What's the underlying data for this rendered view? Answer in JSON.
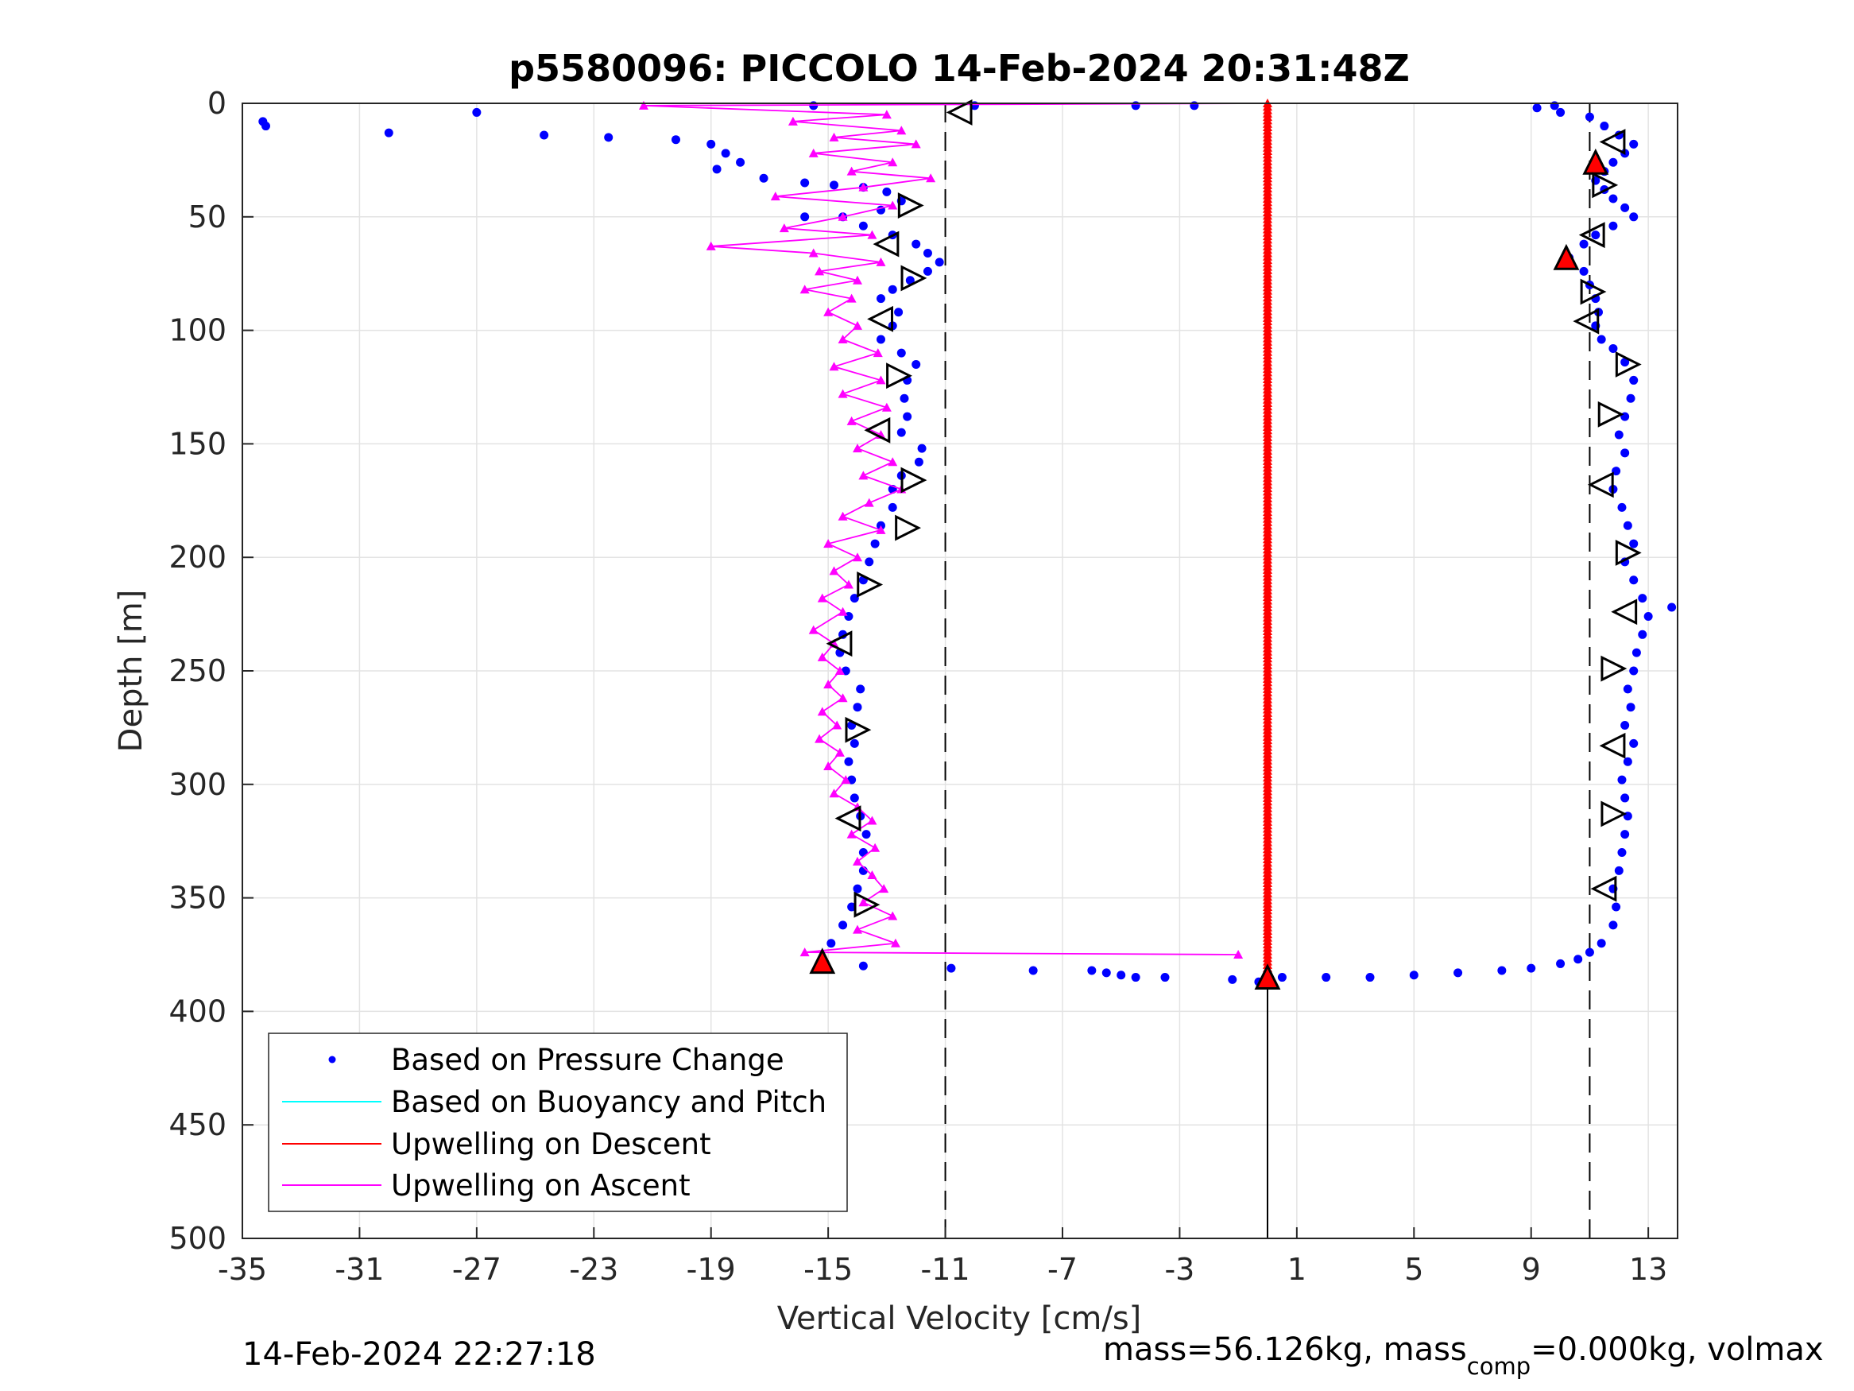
{
  "chart_data": {
    "type": "scatter",
    "title": "p5580096: PICCOLO 14-Feb-2024 20:31:48Z",
    "xlabel": "Vertical Velocity [cm/s]",
    "ylabel": "Depth [m]",
    "xlim": [
      -35,
      14
    ],
    "ylim": [
      0,
      500
    ],
    "y_reversed": true,
    "grid": true,
    "legend_position": "bottom-left",
    "x_ticks": [
      -35,
      -31,
      -27,
      -23,
      -19,
      -15,
      -11,
      -7,
      -3,
      1,
      5,
      9,
      13
    ],
    "y_ticks": [
      0,
      50,
      100,
      150,
      200,
      250,
      300,
      350,
      400,
      450,
      500
    ],
    "reference_lines": {
      "dashed_x": [
        -11,
        11
      ],
      "solid_x_at_upwelling": 0,
      "solid_line_start_depth": 385
    },
    "legend": [
      {
        "name": "Based on Pressure Change",
        "color": "#0000ff",
        "style": "marker"
      },
      {
        "name": "Based on Buoyancy and Pitch",
        "color": "#00ffff",
        "style": "line"
      },
      {
        "name": "Upwelling on Descent",
        "color": "#ff0000",
        "style": "line"
      },
      {
        "name": "Upwelling on Ascent",
        "color": "#ff00ff",
        "style": "line"
      }
    ],
    "series": [
      {
        "name": "Based on Pressure Change",
        "color": "#0000ff",
        "descent_points": [
          [
            -34.3,
            8
          ],
          [
            -34.2,
            10
          ],
          [
            -30,
            13
          ],
          [
            -27,
            4
          ],
          [
            -24.7,
            14
          ],
          [
            -22.5,
            15
          ],
          [
            -20.2,
            16
          ],
          [
            -19,
            18
          ],
          [
            -18.5,
            22
          ],
          [
            -18,
            26
          ],
          [
            -18.8,
            29
          ],
          [
            -17.2,
            33
          ],
          [
            -15.8,
            35
          ],
          [
            -14.8,
            36
          ],
          [
            -13.8,
            37
          ],
          [
            -13,
            39
          ],
          [
            -12.5,
            43
          ],
          [
            -13.2,
            47
          ],
          [
            -14.5,
            50
          ],
          [
            -15.8,
            50
          ],
          [
            -13.8,
            54
          ],
          [
            -12.8,
            58
          ],
          [
            -12,
            62
          ],
          [
            -11.6,
            66
          ],
          [
            -11.2,
            70
          ],
          [
            -11.6,
            74
          ],
          [
            -12.2,
            78
          ],
          [
            -12.8,
            82
          ],
          [
            -13.2,
            86
          ],
          [
            -12.6,
            92
          ],
          [
            -12.8,
            98
          ],
          [
            -13.2,
            104
          ],
          [
            -12.5,
            110
          ],
          [
            -12,
            115
          ],
          [
            -12.3,
            122
          ],
          [
            -12.4,
            130
          ],
          [
            -12.3,
            138
          ],
          [
            -12.5,
            145
          ],
          [
            -11.8,
            152
          ],
          [
            -11.9,
            158
          ],
          [
            -12.5,
            164
          ],
          [
            -12.8,
            170
          ],
          [
            -12.8,
            178
          ],
          [
            -13.2,
            186
          ],
          [
            -13.4,
            194
          ],
          [
            -13.6,
            202
          ],
          [
            -13.8,
            210
          ],
          [
            -14.1,
            218
          ],
          [
            -14.3,
            226
          ],
          [
            -14.5,
            234
          ],
          [
            -14.6,
            242
          ],
          [
            -14.4,
            250
          ],
          [
            -13.9,
            258
          ],
          [
            -14,
            266
          ],
          [
            -14.2,
            274
          ],
          [
            -14.1,
            282
          ],
          [
            -14.3,
            290
          ],
          [
            -14.2,
            298
          ],
          [
            -14.1,
            306
          ],
          [
            -13.9,
            314
          ],
          [
            -13.7,
            322
          ],
          [
            -13.8,
            330
          ],
          [
            -13.8,
            338
          ],
          [
            -14,
            346
          ],
          [
            -14.2,
            354
          ],
          [
            -14.5,
            362
          ],
          [
            -14.9,
            370
          ],
          [
            -15.2,
            378
          ],
          [
            -13.8,
            380
          ],
          [
            -10.8,
            381
          ],
          [
            -8,
            382
          ],
          [
            -6,
            382
          ],
          [
            -5.5,
            383
          ],
          [
            -5,
            384
          ],
          [
            -4.5,
            385
          ],
          [
            -3.5,
            385
          ],
          [
            -1.2,
            386
          ],
          [
            -0.3,
            387
          ]
        ],
        "ascent_points": [
          [
            -15.5,
            1
          ],
          [
            -10,
            1
          ],
          [
            -4.5,
            1
          ],
          [
            -2.5,
            1
          ],
          [
            0.5,
            385
          ],
          [
            2,
            385
          ],
          [
            3.5,
            385
          ],
          [
            5,
            384
          ],
          [
            6.5,
            383
          ],
          [
            8,
            382
          ],
          [
            9,
            381
          ],
          [
            10,
            379
          ],
          [
            10.6,
            377
          ],
          [
            11,
            374
          ],
          [
            11.4,
            370
          ],
          [
            11.8,
            362
          ],
          [
            11.9,
            354
          ],
          [
            11.8,
            346
          ],
          [
            12,
            338
          ],
          [
            12.1,
            330
          ],
          [
            12.2,
            322
          ],
          [
            12.3,
            314
          ],
          [
            12.2,
            306
          ],
          [
            12.1,
            298
          ],
          [
            12.3,
            290
          ],
          [
            12.5,
            282
          ],
          [
            12.2,
            274
          ],
          [
            12.4,
            266
          ],
          [
            12.3,
            258
          ],
          [
            12.5,
            250
          ],
          [
            12.6,
            242
          ],
          [
            12.8,
            234
          ],
          [
            13,
            226
          ],
          [
            13.8,
            222
          ],
          [
            12.8,
            218
          ],
          [
            12.5,
            210
          ],
          [
            12.2,
            202
          ],
          [
            12.5,
            194
          ],
          [
            12.3,
            186
          ],
          [
            12.1,
            178
          ],
          [
            11.8,
            170
          ],
          [
            11.9,
            162
          ],
          [
            12.2,
            154
          ],
          [
            12,
            146
          ],
          [
            12.2,
            138
          ],
          [
            12.4,
            130
          ],
          [
            12.5,
            122
          ],
          [
            12.2,
            114
          ],
          [
            11.8,
            108
          ],
          [
            11.4,
            104
          ],
          [
            11.2,
            98
          ],
          [
            11.3,
            92
          ],
          [
            11.2,
            86
          ],
          [
            11,
            80
          ],
          [
            10.8,
            74
          ],
          [
            10.3,
            68
          ],
          [
            10.8,
            62
          ],
          [
            11.2,
            58
          ],
          [
            11.8,
            54
          ],
          [
            12.5,
            50
          ],
          [
            12.2,
            46
          ],
          [
            11.8,
            42
          ],
          [
            11.5,
            38
          ],
          [
            11.2,
            34
          ],
          [
            11.5,
            30
          ],
          [
            11.8,
            26
          ],
          [
            12.2,
            22
          ],
          [
            12.5,
            18
          ],
          [
            12,
            14
          ],
          [
            11.5,
            10
          ],
          [
            11,
            6
          ],
          [
            10,
            4
          ],
          [
            9.2,
            2
          ],
          [
            9.8,
            1
          ]
        ]
      },
      {
        "name": "Upwelling on Descent",
        "color": "#ff0000",
        "x_value": 0,
        "depth_range": [
          0,
          385
        ]
      },
      {
        "name": "Upwelling on Ascent",
        "color": "#ff00ff",
        "points": [
          [
            -21.3,
            1
          ],
          [
            -13,
            5
          ],
          [
            -16.2,
            8
          ],
          [
            -12.5,
            12
          ],
          [
            -14.8,
            15
          ],
          [
            -12,
            18
          ],
          [
            -15.5,
            22
          ],
          [
            -12.8,
            26
          ],
          [
            -14.2,
            30
          ],
          [
            -11.5,
            33
          ],
          [
            -13.8,
            37
          ],
          [
            -16.8,
            41
          ],
          [
            -12.8,
            45
          ],
          [
            -14.5,
            50
          ],
          [
            -16.5,
            55
          ],
          [
            -13.5,
            58
          ],
          [
            -19,
            63
          ],
          [
            -15.5,
            66
          ],
          [
            -13.2,
            70
          ],
          [
            -15.3,
            74
          ],
          [
            -14,
            78
          ],
          [
            -15.8,
            82
          ],
          [
            -14.2,
            86
          ],
          [
            -15,
            92
          ],
          [
            -14,
            98
          ],
          [
            -14.5,
            104
          ],
          [
            -13.3,
            110
          ],
          [
            -14.8,
            116
          ],
          [
            -13.2,
            122
          ],
          [
            -14.5,
            128
          ],
          [
            -13,
            134
          ],
          [
            -14.2,
            140
          ],
          [
            -13.2,
            146
          ],
          [
            -14,
            152
          ],
          [
            -12.8,
            158
          ],
          [
            -13.8,
            164
          ],
          [
            -12.5,
            170
          ],
          [
            -13.6,
            176
          ],
          [
            -14.5,
            182
          ],
          [
            -13.2,
            188
          ],
          [
            -15,
            194
          ],
          [
            -14,
            200
          ],
          [
            -14.8,
            206
          ],
          [
            -14.3,
            212
          ],
          [
            -15.2,
            218
          ],
          [
            -14.5,
            224
          ],
          [
            -15.5,
            232
          ],
          [
            -14.8,
            238
          ],
          [
            -15.2,
            244
          ],
          [
            -14.6,
            250
          ],
          [
            -15,
            256
          ],
          [
            -14.5,
            262
          ],
          [
            -15.2,
            268
          ],
          [
            -14.7,
            274
          ],
          [
            -15.3,
            280
          ],
          [
            -14.6,
            286
          ],
          [
            -15,
            292
          ],
          [
            -14.4,
            298
          ],
          [
            -14.8,
            304
          ],
          [
            -14,
            310
          ],
          [
            -13.5,
            316
          ],
          [
            -14.2,
            322
          ],
          [
            -13.4,
            328
          ],
          [
            -14,
            334
          ],
          [
            -13.5,
            340
          ],
          [
            -13.1,
            346
          ],
          [
            -13.8,
            352
          ],
          [
            -12.8,
            358
          ],
          [
            -14,
            364
          ],
          [
            -12.7,
            370
          ],
          [
            -15.8,
            374
          ],
          [
            -1,
            375
          ]
        ]
      }
    ],
    "triangle_markers": [
      {
        "x": -10.5,
        "y": 4,
        "dir": "left",
        "fill": "none"
      },
      {
        "x": 11.8,
        "y": 17,
        "dir": "left",
        "fill": "none"
      },
      {
        "x": 11.2,
        "y": 26,
        "dir": "up",
        "fill": "#ff0000"
      },
      {
        "x": 11.5,
        "y": 36,
        "dir": "right",
        "fill": "none"
      },
      {
        "x": -12.2,
        "y": 45,
        "dir": "right",
        "fill": "none"
      },
      {
        "x": 11.1,
        "y": 58,
        "dir": "left",
        "fill": "none"
      },
      {
        "x": -13,
        "y": 62,
        "dir": "left",
        "fill": "none"
      },
      {
        "x": 10.2,
        "y": 68,
        "dir": "up",
        "fill": "#ff0000"
      },
      {
        "x": -12.1,
        "y": 77,
        "dir": "right",
        "fill": "none"
      },
      {
        "x": 11.1,
        "y": 83,
        "dir": "right",
        "fill": "none"
      },
      {
        "x": 10.9,
        "y": 96,
        "dir": "left",
        "fill": "none"
      },
      {
        "x": -13.2,
        "y": 95,
        "dir": "left",
        "fill": "none"
      },
      {
        "x": 12.3,
        "y": 115,
        "dir": "right",
        "fill": "none"
      },
      {
        "x": -12.6,
        "y": 120,
        "dir": "right",
        "fill": "none"
      },
      {
        "x": 11.7,
        "y": 137,
        "dir": "right",
        "fill": "none"
      },
      {
        "x": -13.3,
        "y": 144,
        "dir": "left",
        "fill": "none"
      },
      {
        "x": 11.4,
        "y": 168,
        "dir": "left",
        "fill": "none"
      },
      {
        "x": -12.1,
        "y": 166,
        "dir": "right",
        "fill": "none"
      },
      {
        "x": -12.3,
        "y": 187,
        "dir": "right",
        "fill": "none"
      },
      {
        "x": 12.3,
        "y": 198,
        "dir": "right",
        "fill": "none"
      },
      {
        "x": -13.6,
        "y": 212,
        "dir": "right",
        "fill": "none"
      },
      {
        "x": 12.2,
        "y": 224,
        "dir": "left",
        "fill": "none"
      },
      {
        "x": -14.6,
        "y": 238,
        "dir": "left",
        "fill": "none"
      },
      {
        "x": 11.8,
        "y": 249,
        "dir": "right",
        "fill": "none"
      },
      {
        "x": -14,
        "y": 276,
        "dir": "right",
        "fill": "none"
      },
      {
        "x": 11.8,
        "y": 283,
        "dir": "left",
        "fill": "none"
      },
      {
        "x": -14.3,
        "y": 315,
        "dir": "left",
        "fill": "none"
      },
      {
        "x": 11.8,
        "y": 313,
        "dir": "right",
        "fill": "none"
      },
      {
        "x": 11.5,
        "y": 346,
        "dir": "left",
        "fill": "none"
      },
      {
        "x": -13.7,
        "y": 353,
        "dir": "right",
        "fill": "none"
      },
      {
        "x": -15.2,
        "y": 378,
        "dir": "up",
        "fill": "#ff0000"
      },
      {
        "x": 0,
        "y": 385,
        "dir": "up",
        "fill": "#ff0000"
      }
    ]
  },
  "footer": {
    "left_text": "14-Feb-2024 22:27:18",
    "right_text_main": "mass=56.126kg, mass",
    "right_text_sub": "comp",
    "right_text_tail": "=0.000kg, volmax"
  }
}
